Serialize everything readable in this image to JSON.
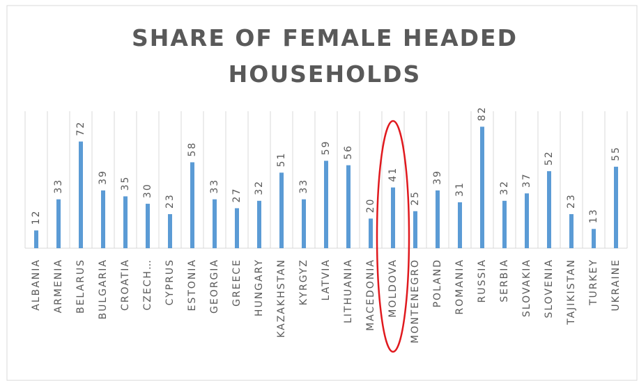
{
  "chart_data": {
    "type": "bar",
    "title": [
      "SHARE OF FEMALE HEADED",
      "HOUSEHOLDS"
    ],
    "categories": [
      "ALBANIA",
      "ARMENIA",
      "BELARUS",
      "BULGARIA",
      "CROATIA",
      "CZECH…",
      "CYPRUS",
      "ESTONIA",
      "GEORGIA",
      "GREECE",
      "HUNGARY",
      "KAZAKHSTAN",
      "KYRGYZ",
      "LATVIA",
      "LITHUANIA",
      "MACEDONIA",
      "MOLDOVA",
      "MONTENEGRO",
      "POLAND",
      "ROMANIA",
      "RUSSIA",
      "SERBIA",
      "SLOVAKIA",
      "SLOVENIA",
      "TAJIKISTAN",
      "TURKEY",
      "UKRAINE"
    ],
    "values": [
      12,
      33,
      72,
      39,
      35,
      30,
      23,
      58,
      33,
      27,
      32,
      51,
      33,
      59,
      56,
      20,
      41,
      25,
      39,
      31,
      82,
      32,
      37,
      52,
      23,
      13,
      55
    ],
    "color": "#5b9bd5",
    "ylim": [
      0,
      84
    ]
  }
}
